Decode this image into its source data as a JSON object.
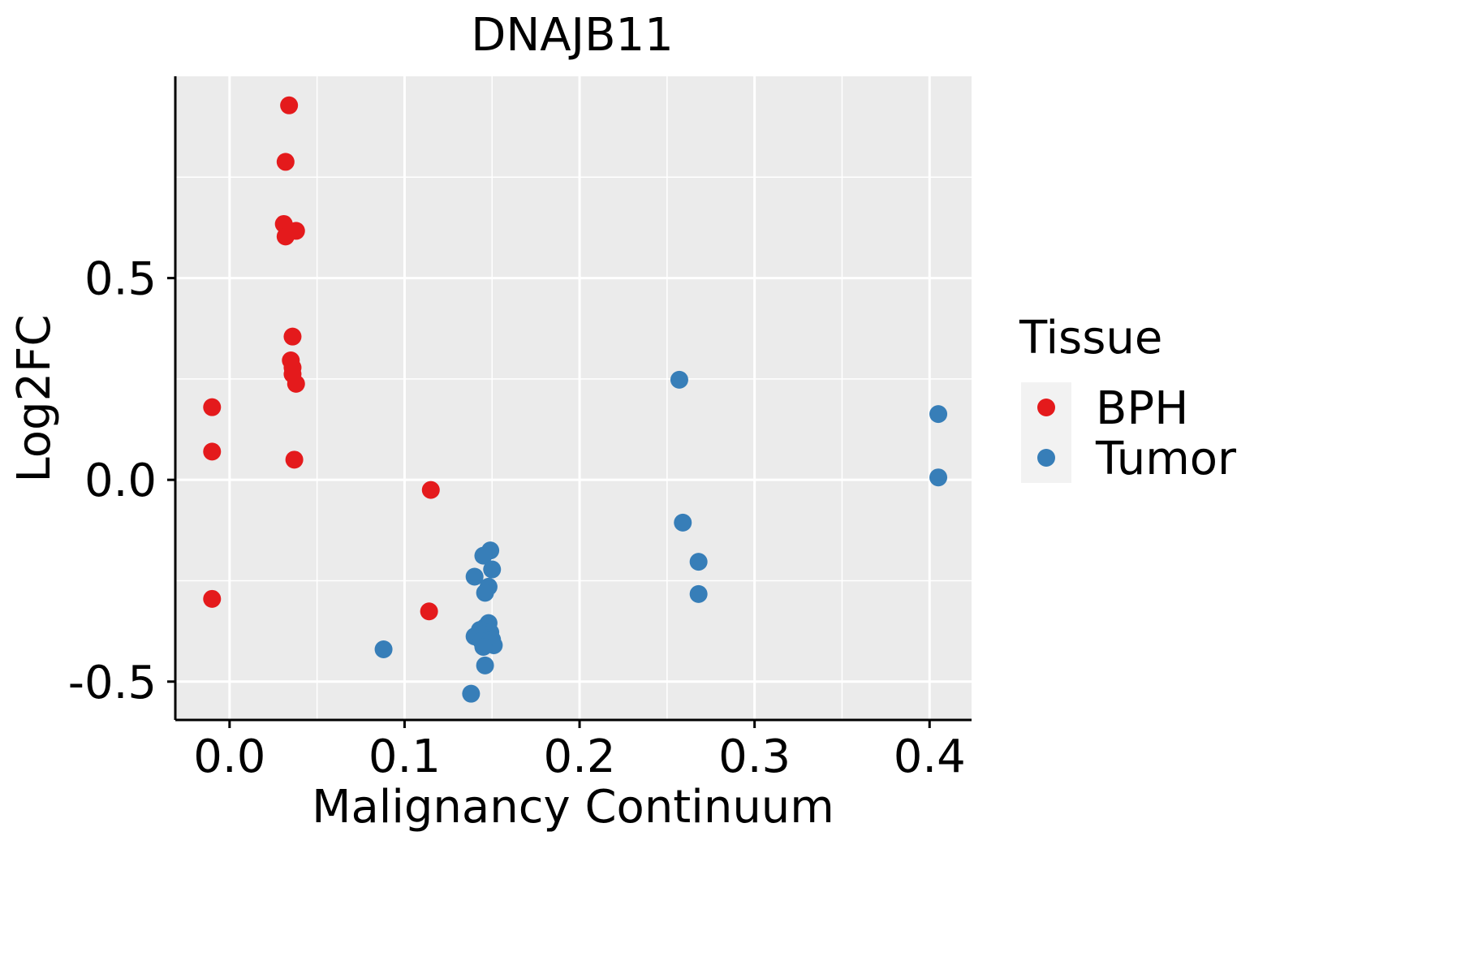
{
  "chart_data": {
    "type": "scatter",
    "title": "DNAJB11",
    "xlabel": "Malignancy Continuum",
    "ylabel": "Log2FC",
    "xlim": [
      -0.031,
      0.424
    ],
    "ylim": [
      -0.595,
      1.0
    ],
    "x_ticks": [
      "0.0",
      "0.1",
      "0.2",
      "0.3",
      "0.4"
    ],
    "y_ticks": [
      "-0.5",
      "0.0",
      "0.5"
    ],
    "grid": true,
    "legend": {
      "title": "Tissue",
      "position": "right",
      "entries": [
        {
          "name": "BPH",
          "color": "#E41A1C"
        },
        {
          "name": "Tumor",
          "color": "#377EB8"
        }
      ]
    },
    "series": [
      {
        "name": "BPH",
        "color": "#E41A1C",
        "points": [
          {
            "x": 0.034,
            "y": 0.928
          },
          {
            "x": 0.032,
            "y": 0.788
          },
          {
            "x": 0.031,
            "y": 0.634
          },
          {
            "x": 0.038,
            "y": 0.617
          },
          {
            "x": 0.032,
            "y": 0.603
          },
          {
            "x": 0.036,
            "y": 0.355
          },
          {
            "x": 0.035,
            "y": 0.296
          },
          {
            "x": 0.036,
            "y": 0.278
          },
          {
            "x": 0.036,
            "y": 0.262
          },
          {
            "x": 0.038,
            "y": 0.238
          },
          {
            "x": -0.01,
            "y": 0.18
          },
          {
            "x": -0.01,
            "y": 0.07
          },
          {
            "x": 0.037,
            "y": 0.05
          },
          {
            "x": 0.115,
            "y": -0.025
          },
          {
            "x": -0.01,
            "y": -0.295
          },
          {
            "x": 0.114,
            "y": -0.326
          }
        ]
      },
      {
        "name": "Tumor",
        "color": "#377EB8",
        "points": [
          {
            "x": 0.257,
            "y": 0.248
          },
          {
            "x": 0.405,
            "y": 0.163
          },
          {
            "x": 0.405,
            "y": 0.006
          },
          {
            "x": 0.259,
            "y": -0.106
          },
          {
            "x": 0.149,
            "y": -0.175
          },
          {
            "x": 0.145,
            "y": -0.188
          },
          {
            "x": 0.15,
            "y": -0.222
          },
          {
            "x": 0.268,
            "y": -0.203
          },
          {
            "x": 0.14,
            "y": -0.24
          },
          {
            "x": 0.148,
            "y": -0.265
          },
          {
            "x": 0.146,
            "y": -0.28
          },
          {
            "x": 0.268,
            "y": -0.283
          },
          {
            "x": 0.148,
            "y": -0.355
          },
          {
            "x": 0.146,
            "y": -0.365
          },
          {
            "x": 0.143,
            "y": -0.372
          },
          {
            "x": 0.149,
            "y": -0.378
          },
          {
            "x": 0.145,
            "y": -0.383
          },
          {
            "x": 0.14,
            "y": -0.388
          },
          {
            "x": 0.147,
            "y": -0.392
          },
          {
            "x": 0.15,
            "y": -0.396
          },
          {
            "x": 0.144,
            "y": -0.4
          },
          {
            "x": 0.148,
            "y": -0.405
          },
          {
            "x": 0.151,
            "y": -0.41
          },
          {
            "x": 0.145,
            "y": -0.414
          },
          {
            "x": 0.088,
            "y": -0.42
          },
          {
            "x": 0.146,
            "y": -0.46
          },
          {
            "x": 0.138,
            "y": -0.53
          }
        ]
      }
    ]
  }
}
